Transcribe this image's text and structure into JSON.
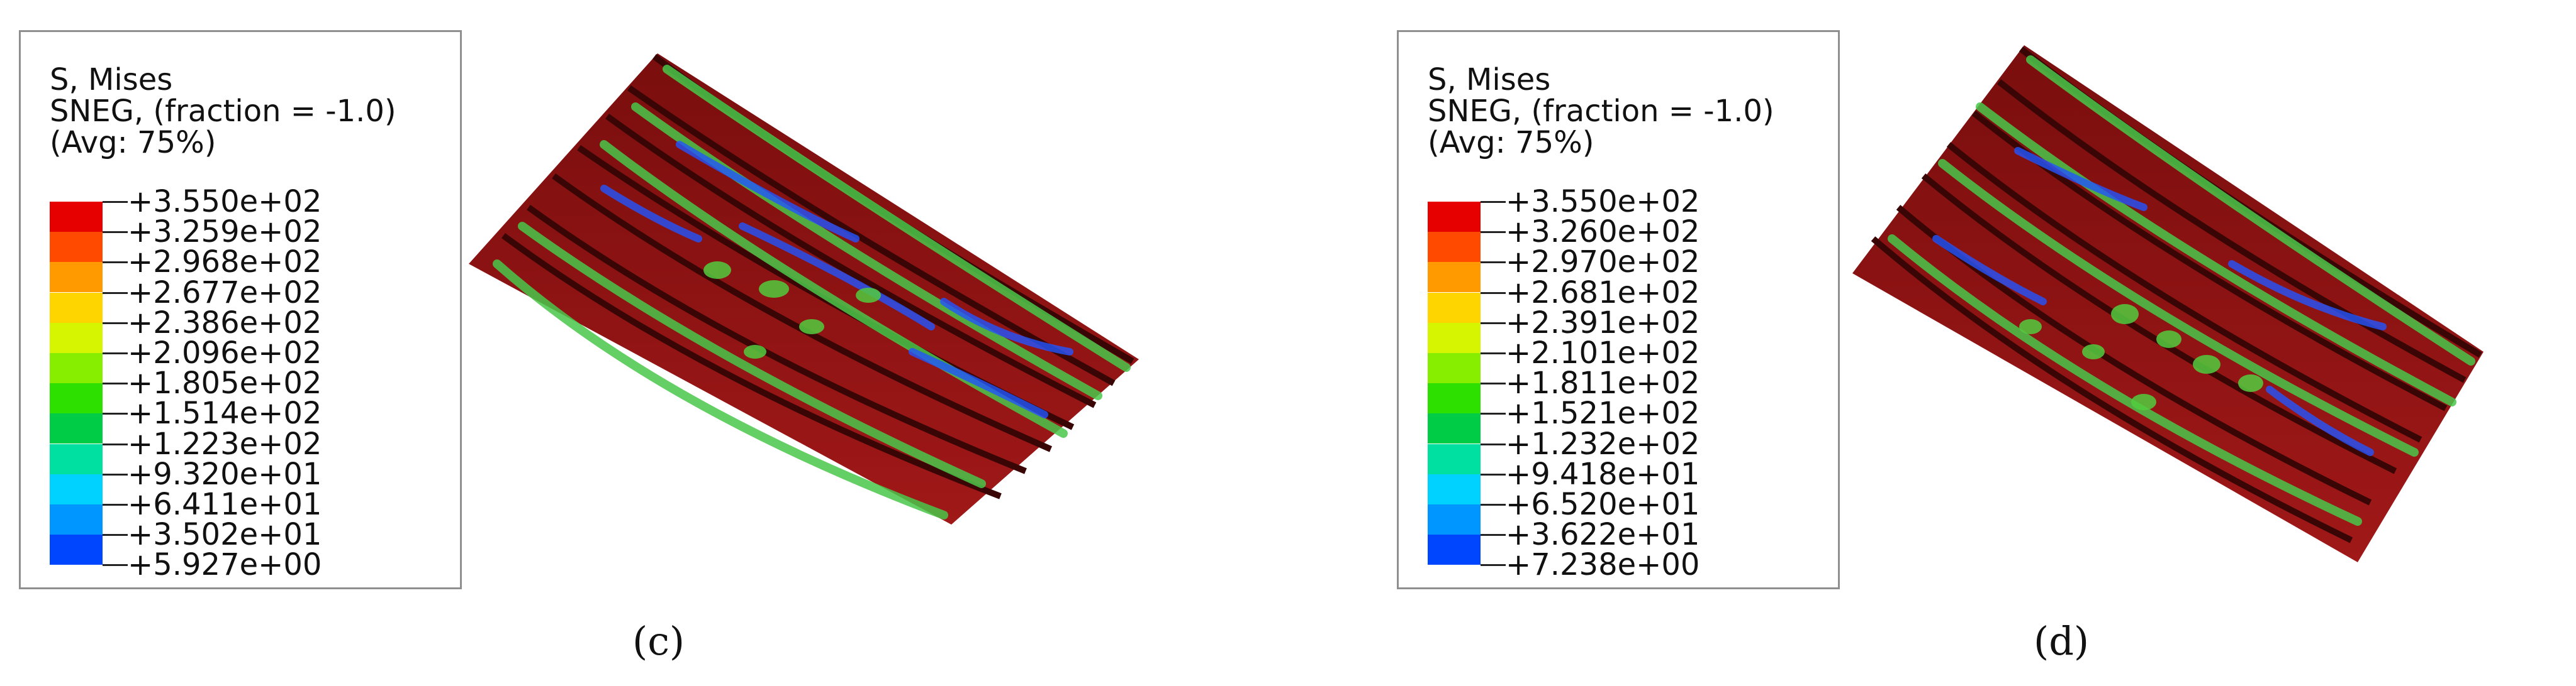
{
  "colors": {
    "scale": [
      "#e60000",
      "#ff4a00",
      "#ff9a00",
      "#ffd500",
      "#d6f500",
      "#88ee00",
      "#2ee000",
      "#00cc46",
      "#00e0a0",
      "#00d2ff",
      "#0096ff",
      "#0046ff",
      "#0000e6"
    ],
    "model_base": "#8b1414",
    "model_dark": "#4a0808",
    "model_green": "#49c74a",
    "model_blue": "#2255ff"
  },
  "panels": [
    {
      "caption": "(c)",
      "legend": {
        "title_line1": "S, Mises",
        "title_line2": "SNEG, (fraction = -1.0)",
        "title_line3": "(Avg: 75%)",
        "values": [
          "+3.550e+02",
          "+3.259e+02",
          "+2.968e+02",
          "+2.677e+02",
          "+2.386e+02",
          "+2.096e+02",
          "+1.805e+02",
          "+1.514e+02",
          "+1.223e+02",
          "+9.320e+01",
          "+6.411e+01",
          "+3.502e+01",
          "+5.927e+00"
        ]
      }
    },
    {
      "caption": "(d)",
      "legend": {
        "title_line1": "S, Mises",
        "title_line2": "SNEG, (fraction = -1.0)",
        "title_line3": "(Avg: 75%)",
        "values": [
          "+3.550e+02",
          "+3.260e+02",
          "+2.970e+02",
          "+2.681e+02",
          "+2.391e+02",
          "+2.101e+02",
          "+1.811e+02",
          "+1.521e+02",
          "+1.232e+02",
          "+9.418e+01",
          "+6.520e+01",
          "+3.622e+01",
          "+7.238e+00"
        ]
      }
    }
  ]
}
